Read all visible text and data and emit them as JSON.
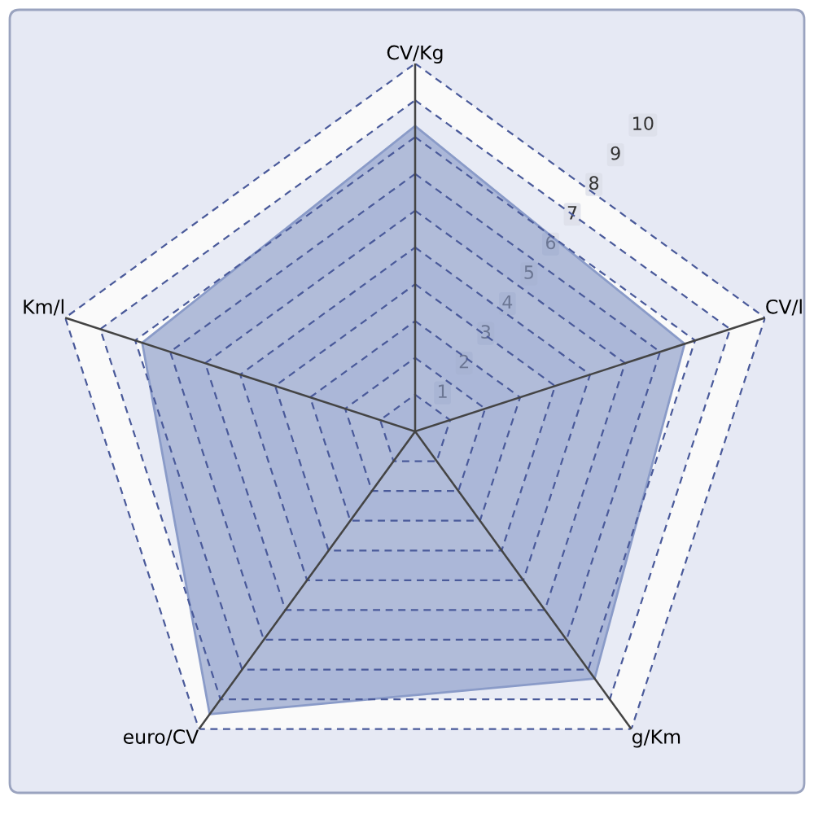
{
  "chart_data": {
    "type": "radar",
    "categories": [
      "CV/Kg",
      "CV/l",
      "g/Km",
      "euro/CV",
      "Km/l"
    ],
    "series": [
      {
        "color": "#8a9bc8",
        "values": [
          8.3,
          7.7,
          8.3,
          9.5,
          7.8
        ]
      }
    ],
    "ylim": [
      0,
      10
    ],
    "yticks": [
      1,
      2,
      3,
      4,
      5,
      6,
      7,
      8,
      9,
      10
    ],
    "grid": true
  }
}
